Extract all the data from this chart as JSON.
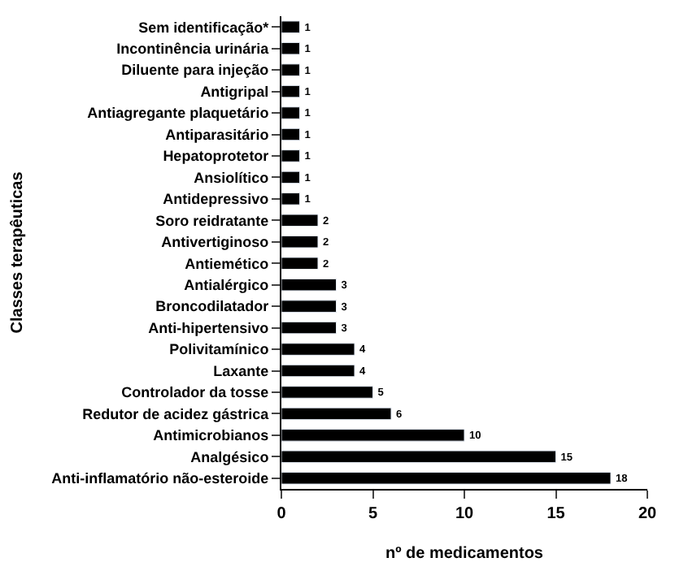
{
  "chart_data": {
    "type": "bar",
    "orientation": "horizontal",
    "xlabel": "nº de medicamentos",
    "ylabel": "Classes terapêuticas",
    "categories": [
      "Sem identificação*",
      "Incontinência urinária",
      "Diluente para injeção",
      "Antigripal",
      "Antiagregante plaquetário",
      "Antiparasitário",
      "Hepatoprotetor",
      "Ansiolítico",
      "Antidepressivo",
      "Soro reidratante",
      "Antivertiginoso",
      "Antiemético",
      "Antialérgico",
      "Broncodilatador",
      "Anti-hipertensivo",
      "Polivitamínico",
      "Laxante",
      "Controlador da tosse",
      "Redutor de acidez gástrica",
      "Antimicrobianos",
      "Analgésico",
      "Anti-inflamatório não-esteroide"
    ],
    "values": [
      1,
      1,
      1,
      1,
      1,
      1,
      1,
      1,
      1,
      2,
      2,
      2,
      3,
      3,
      3,
      4,
      4,
      5,
      6,
      10,
      15,
      18
    ],
    "color": "#000000",
    "xlim": [
      0,
      20
    ],
    "xticks": [
      0,
      5,
      10,
      15,
      20
    ],
    "data_labels": true
  }
}
